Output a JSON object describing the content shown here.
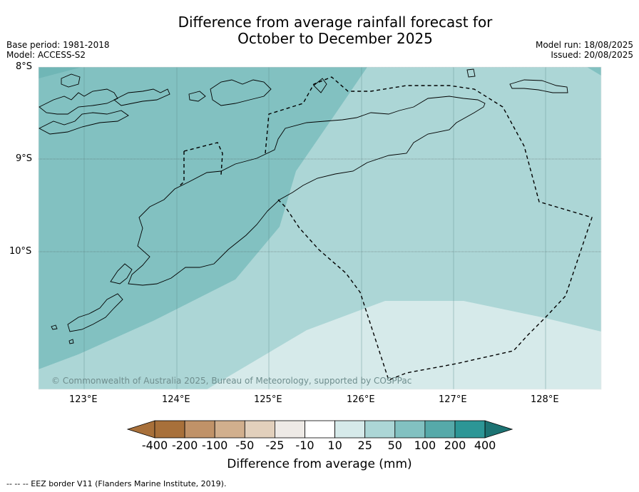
{
  "title_line1": "Difference from average rainfall forecast for",
  "title_line2": "October to December 2025",
  "meta_left": {
    "base_period": "Base period: 1981-2018",
    "model": "Model: ACCESS-S2"
  },
  "meta_right": {
    "model_run": "Model run: 18/08/2025",
    "issued": "Issued: 20/08/2025"
  },
  "latitude_labels": [
    "8°S",
    "9°S",
    "10°S"
  ],
  "longitude_labels": [
    "123°E",
    "124°E",
    "125°E",
    "126°E",
    "127°E",
    "128°E"
  ],
  "copyright": "© Commonwealth of Australia 2025, Bureau of Meteorology, supported by COSPPac",
  "colorbar": {
    "title": "Difference from average (mm)",
    "ticks": [
      "-400",
      "-200",
      "-100",
      "-50",
      "-25",
      "-10",
      "10",
      "25",
      "50",
      "100",
      "200",
      "400"
    ],
    "colors": [
      "#a8703a",
      "#a8703a",
      "#c09268",
      "#d1af8d",
      "#e2d0bc",
      "#eeeae6",
      "#ffffff",
      "#d6eaea",
      "#acd6d6",
      "#82c1c1",
      "#56a9a9",
      "#2c9696",
      "#1c7373"
    ]
  },
  "map_colors": {
    "dark": "#82c1c1",
    "medium": "#acd6d6",
    "light": "#d6eaea"
  },
  "footnote": "--  --  -- EEZ border V11 (Flanders Marine Institute, 2019)."
}
